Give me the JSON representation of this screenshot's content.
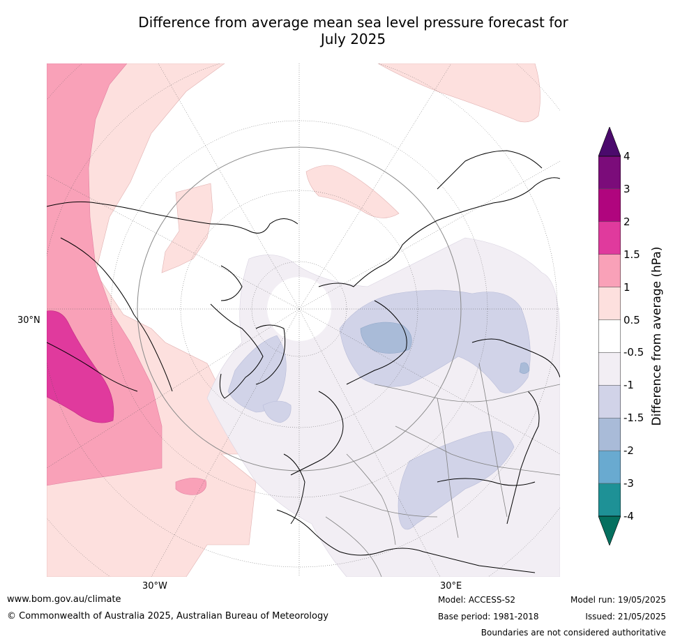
{
  "title_line1": "Difference from average mean sea level pressure forecast for",
  "title_line2": "July 2025",
  "map": {
    "projection": "north-polar-stereographic",
    "graticule_labels": {
      "left": "30°N",
      "bottom_left": "30°W",
      "bottom_right": "30°E"
    },
    "colors": {
      "land_border": "#000000",
      "country_border": "#808080",
      "graticule": "#555555"
    },
    "regions": [
      {
        "name": "north-pacific-high",
        "category": "1.5 to 2"
      },
      {
        "name": "north-pacific-positive",
        "category": "1 to 1.5"
      },
      {
        "name": "atlantic-positive",
        "category": "0.5 to 1"
      },
      {
        "name": "greenland-negative",
        "category": "-1.5 to -1"
      },
      {
        "name": "siberia-negative",
        "category": "-2 to -1.5"
      },
      {
        "name": "europe-negative",
        "category": "-1 to -0.5"
      }
    ]
  },
  "colorbar": {
    "label": "Difference from average (hPa)",
    "ticks": [
      "4",
      "3",
      "2",
      "1.5",
      "1",
      "0.5",
      "-0.5",
      "-1",
      "-1.5",
      "-2",
      "-3",
      "-4"
    ],
    "colors": [
      "#7b0c7a",
      "#b0057e",
      "#e03a9d",
      "#f9a1b8",
      "#fde0de",
      "#ffffff",
      "#f2eef4",
      "#d1d3e8",
      "#a9bbd8",
      "#69aad0",
      "#1e9196"
    ],
    "over_color": "#4b0a6c",
    "under_color": "#05705f"
  },
  "footer": {
    "website": "www.bom.gov.au/climate",
    "copyright": "© Commonwealth of Australia 2025, Australian Bureau of Meteorology",
    "model": "Model: ACCESS-S2",
    "base_period": "Base period: 1981-2018",
    "model_run": "Model run: 19/05/2025",
    "issued": "Issued: 21/05/2025",
    "disclaimer": "Boundaries are not considered authoritative"
  }
}
